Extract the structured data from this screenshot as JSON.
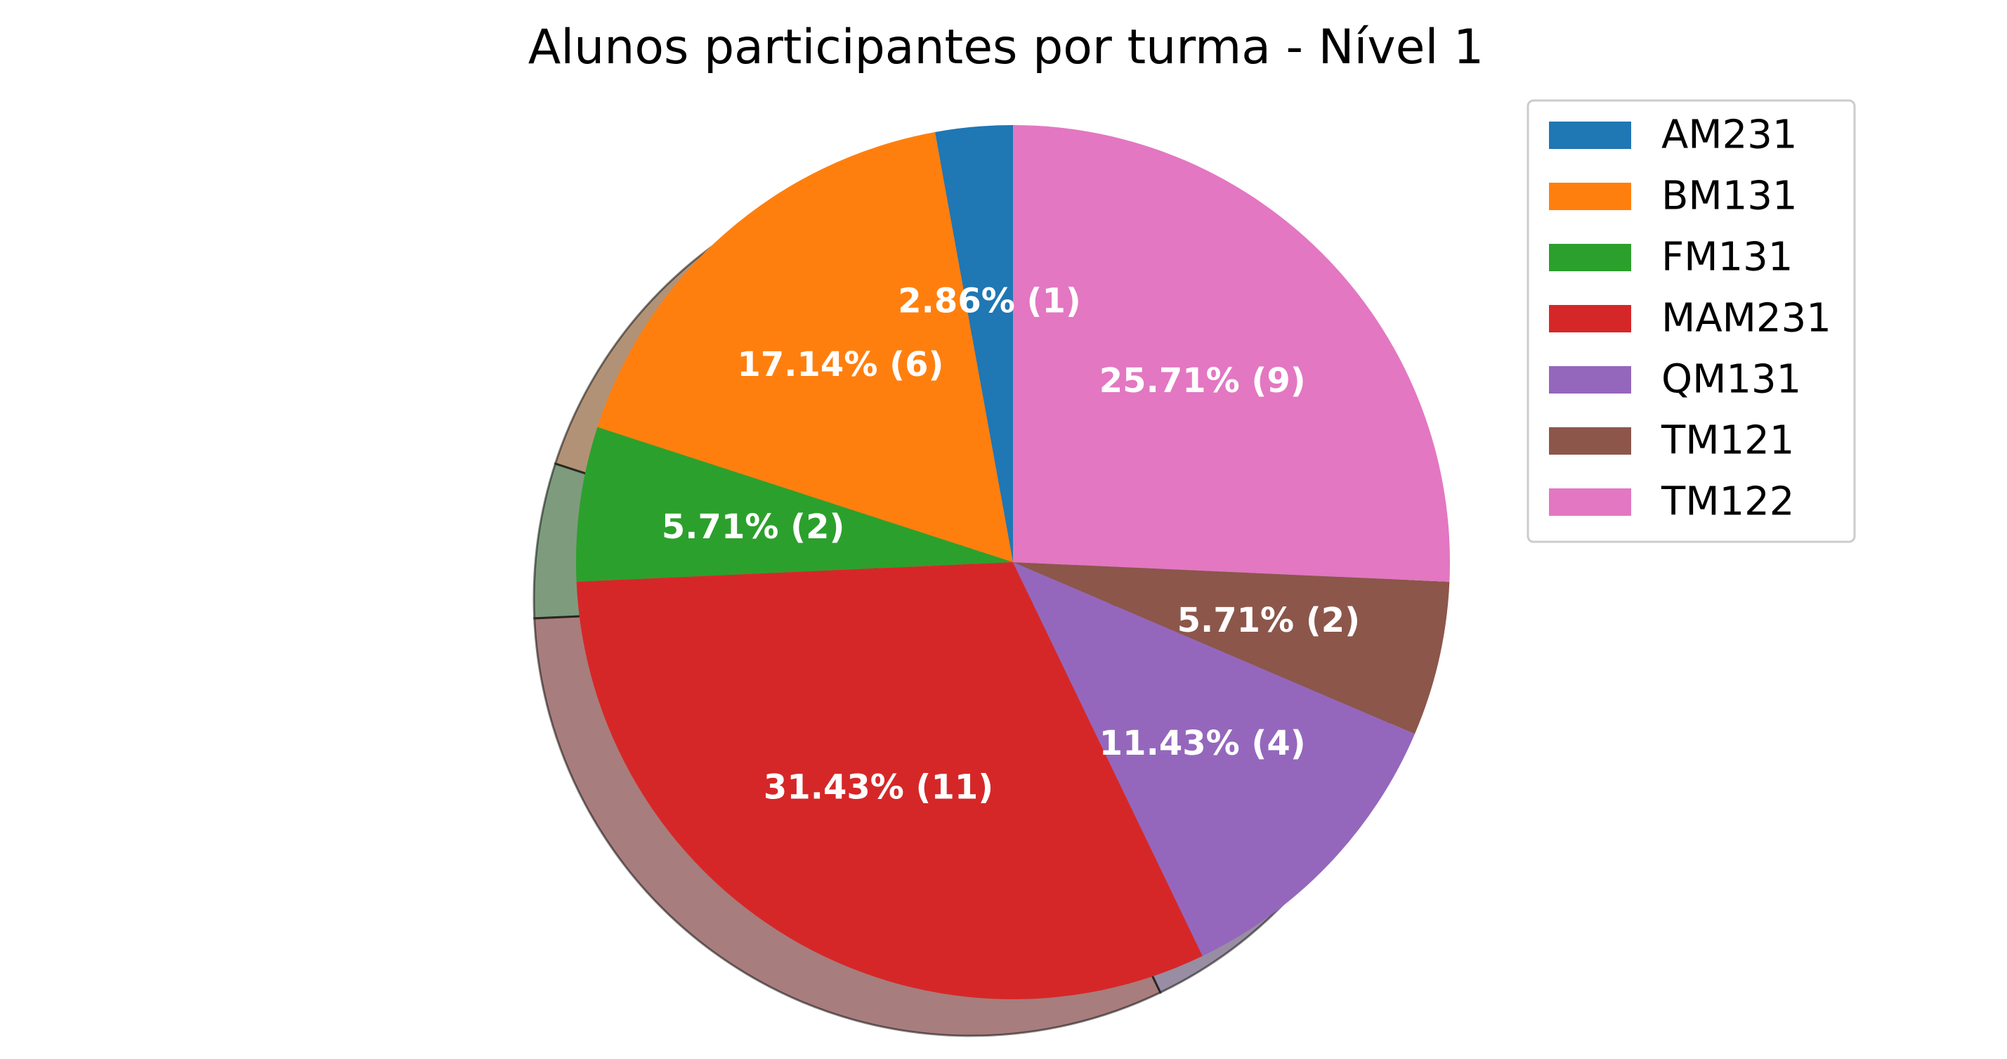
{
  "chart_data": {
    "type": "pie",
    "title": "Alunos participantes por turma - Nível 1",
    "categories": [
      "AM231",
      "BM131",
      "FM131",
      "MAM231",
      "QM131",
      "TM121",
      "TM122"
    ],
    "values": [
      1,
      6,
      2,
      11,
      4,
      2,
      9
    ],
    "labels": [
      "2.86%  (1)",
      "17.14%  (6)",
      "5.71%  (2)",
      "31.43%  (11)",
      "11.43%  (4)",
      "5.71%  (2)",
      "25.71%  (9)"
    ],
    "colors": [
      "#1f77b4",
      "#ff7f0e",
      "#2ca02c",
      "#d62728",
      "#9467bd",
      "#8c564b",
      "#e377c2"
    ],
    "start_angle": 90,
    "direction": "counterclockwise",
    "shadow": true,
    "legend": {
      "position": "upper-right",
      "entries": [
        "AM231",
        "BM131",
        "FM131",
        "MAM231",
        "QM131",
        "TM121",
        "TM122"
      ]
    }
  }
}
